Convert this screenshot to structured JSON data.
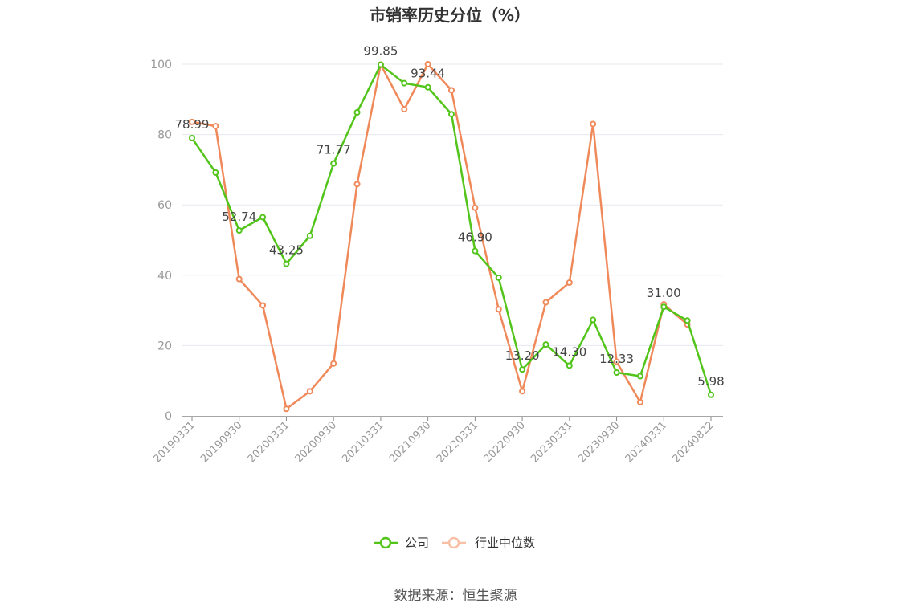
{
  "chart_data": {
    "type": "line",
    "title": "市销率历史分位（%）",
    "xlabel": "",
    "ylabel": "",
    "ylim": [
      0,
      100
    ],
    "yticks": [
      0,
      20,
      40,
      60,
      80,
      100
    ],
    "x": [
      "20190331",
      "20190630",
      "20190930",
      "20191231",
      "20200331",
      "20200630",
      "20200930",
      "20201231",
      "20210331",
      "20210630",
      "20210930",
      "20211231",
      "20220331",
      "20220630",
      "20220930",
      "20221231",
      "20230331",
      "20230630",
      "20230930",
      "20231231",
      "20240331",
      "20240630",
      "20240822"
    ],
    "x_tick_labels": [
      "20190331",
      "20190930",
      "20200331",
      "20200930",
      "20210331",
      "20210930",
      "20220331",
      "20220930",
      "20230331",
      "20230930",
      "20240331",
      "20240822"
    ],
    "series": [
      {
        "name": "公司",
        "color": "#52c41a",
        "values": [
          78.99,
          69.2,
          52.74,
          56.5,
          43.25,
          51.2,
          71.77,
          86.3,
          99.85,
          94.6,
          93.44,
          85.8,
          46.9,
          39.3,
          13.2,
          20.3,
          14.3,
          27.3,
          12.33,
          11.3,
          31.0,
          27.1,
          5.98
        ],
        "data_labels": [
          {
            "index": 0,
            "text": "78.99"
          },
          {
            "index": 2,
            "text": "52.74"
          },
          {
            "index": 4,
            "text": "43.25"
          },
          {
            "index": 6,
            "text": "71.77"
          },
          {
            "index": 8,
            "text": "99.85"
          },
          {
            "index": 10,
            "text": "93.44"
          },
          {
            "index": 12,
            "text": "46.90"
          },
          {
            "index": 14,
            "text": "13.20"
          },
          {
            "index": 16,
            "text": "14.30"
          },
          {
            "index": 18,
            "text": "12.33"
          },
          {
            "index": 20,
            "text": "31.00"
          },
          {
            "index": 22,
            "text": "5.98"
          }
        ]
      },
      {
        "name": "行业中位数",
        "color": "#f0895a",
        "values": [
          83.6,
          82.4,
          38.9,
          31.4,
          2.0,
          7.0,
          14.9,
          65.9,
          99.9,
          87.2,
          100.0,
          92.6,
          59.2,
          30.3,
          7.0,
          32.3,
          37.9,
          83.0,
          15.4,
          3.9,
          31.7,
          26.0,
          null
        ]
      }
    ],
    "grid": true,
    "legend_position": "bottom-center"
  },
  "legend": [
    {
      "label": "公司",
      "color": "#52c41a",
      "active": true
    },
    {
      "label": "行业中位数",
      "color": "#f8c0a6",
      "active": false
    }
  ],
  "source_text": "数据来源：恒生聚源"
}
